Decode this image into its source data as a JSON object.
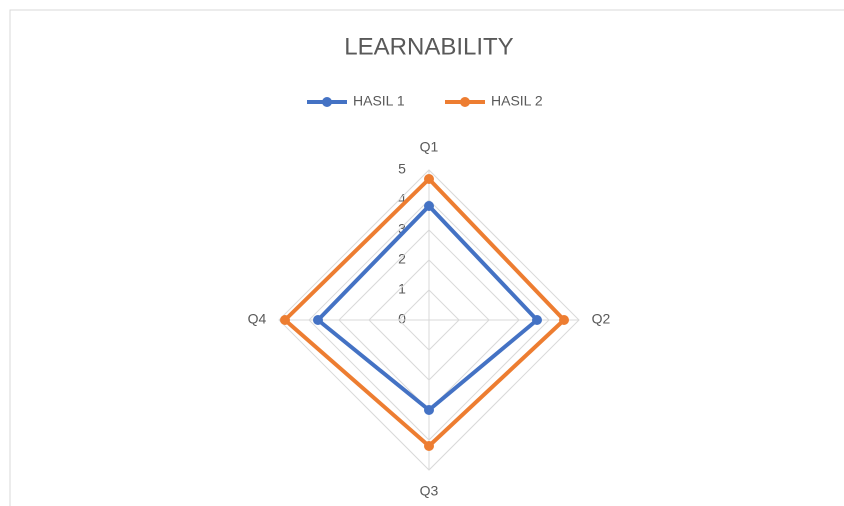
{
  "chart_data": {
    "type": "radar",
    "title": "LEARNABILITY",
    "categories": [
      "Q1",
      "Q2",
      "Q3",
      "Q4"
    ],
    "series": [
      {
        "name": "HASIL 1",
        "color": "#4472c4",
        "values": [
          3.8,
          3.6,
          3,
          3.7
        ]
      },
      {
        "name": "HASIL 2",
        "color": "#ed7d31",
        "values": [
          4.7,
          4.5,
          4.2,
          4.8
        ]
      }
    ],
    "rlim": [
      0,
      5
    ],
    "rticks": [
      0,
      1,
      2,
      3,
      4,
      5
    ],
    "grid": true,
    "legend": "top"
  }
}
